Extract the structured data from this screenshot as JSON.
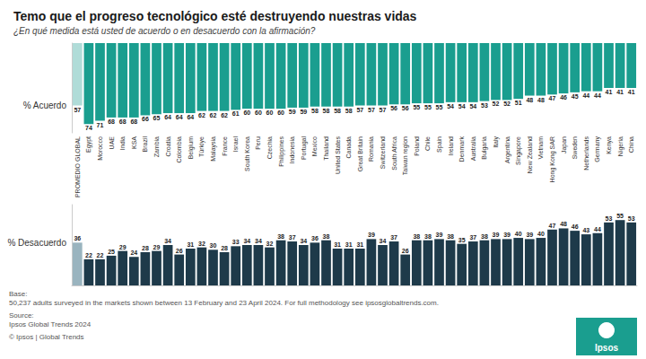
{
  "chart_data": [
    {
      "type": "bar",
      "title": "Temo que el progreso tecnológico esté destruyendo nuestras vidas",
      "subtitle": "¿En qué medida está usted de acuerdo o en desacuerdo con la afirmación?",
      "categories": [
        "PROMEDIO GLOBAL",
        "Egypt",
        "Morocco",
        "UAE",
        "India",
        "KSA",
        "Brazil",
        "Zambia",
        "Croatia",
        "Colombia",
        "Belgium",
        "Türkiye",
        "Malaysia",
        "France",
        "Israel",
        "South Korea",
        "Peru",
        "Czechia",
        "Philippines",
        "Indonesia",
        "Portugal",
        "Mexico",
        "Thailand",
        "United States",
        "Canada",
        "Great Britain",
        "Romania",
        "Switzerland",
        "South Africa",
        "Taiwan region",
        "Poland",
        "Chile",
        "Spain",
        "Ireland",
        "Denmark",
        "Australia",
        "Bulgaria",
        "Italy",
        "Argentina",
        "Singapore",
        "New Zealand",
        "Vietnam",
        "Hong Kong SAR",
        "Japan",
        "Sweden",
        "Netherlands",
        "Germany",
        "Kenya",
        "Nigeria",
        "China"
      ],
      "values": [
        57,
        74,
        71,
        68,
        68,
        68,
        66,
        65,
        64,
        64,
        64,
        62,
        62,
        62,
        61,
        60,
        60,
        60,
        60,
        59,
        59,
        58,
        58,
        58,
        58,
        57,
        57,
        57,
        56,
        56,
        55,
        55,
        55,
        54,
        54,
        54,
        53,
        52,
        52,
        51,
        48,
        48,
        47,
        46,
        45,
        44,
        44,
        41,
        41,
        41
      ],
      "colors": [
        "#b0dcd8",
        "#1a9e8f",
        "#1a9e8f",
        "#1a9e8f",
        "#1a9e8f",
        "#1a9e8f",
        "#1a9e8f",
        "#1a9e8f",
        "#1a9e8f",
        "#1a9e8f",
        "#1a9e8f",
        "#1a9e8f",
        "#1a9e8f",
        "#1a9e8f",
        "#1a9e8f",
        "#1a9e8f",
        "#1a9e8f",
        "#1a9e8f",
        "#1a9e8f",
        "#1a9e8f",
        "#1a9e8f",
        "#1a9e8f",
        "#1a9e8f",
        "#1a9e8f",
        "#1a9e8f",
        "#1a9e8f",
        "#1a9e8f",
        "#1a9e8f",
        "#1a9e8f",
        "#1a9e8f",
        "#1a9e8f",
        "#1a9e8f",
        "#1a9e8f",
        "#1a9e8f",
        "#1a9e8f",
        "#1a9e8f",
        "#1a9e8f",
        "#1a9e8f",
        "#1a9e8f",
        "#1a9e8f",
        "#1a9e8f",
        "#1a9e8f",
        "#1a9e8f",
        "#1a9e8f",
        "#1a9e8f",
        "#1a9e8f",
        "#1a9e8f",
        "#1a9e8f",
        "#1a9e8f",
        "#1a9e8f"
      ],
      "ylabel": "% Acuerdo",
      "ylim": [
        0,
        82
      ],
      "data_labels": true,
      "tick_labels": "x",
      "grid": false
    },
    {
      "type": "bar",
      "categories": [
        "PROMEDIO GLOBAL",
        "Egypt",
        "Morocco",
        "UAE",
        "India",
        "KSA",
        "Brazil",
        "Zambia",
        "Croatia",
        "Colombia",
        "Belgium",
        "Türkiye",
        "Malaysia",
        "France",
        "Israel",
        "South Korea",
        "Peru",
        "Czechia",
        "Philippines",
        "Indonesia",
        "Portugal",
        "Mexico",
        "Thailand",
        "United States",
        "Canada",
        "Great Britain",
        "Romania",
        "Switzerland",
        "South Africa",
        "Taiwan region",
        "Poland",
        "Chile",
        "Spain",
        "Ireland",
        "Denmark",
        "Australia",
        "Bulgaria",
        "Italy",
        "Argentina",
        "Singapore",
        "New Zealand",
        "Vietnam",
        "Hong Kong SAR",
        "Japan",
        "Sweden",
        "Netherlands",
        "Germany",
        "Kenya",
        "Nigeria",
        "China"
      ],
      "values": [
        36,
        22,
        22,
        25,
        29,
        24,
        28,
        29,
        34,
        26,
        31,
        32,
        30,
        28,
        33,
        34,
        34,
        32,
        38,
        37,
        34,
        36,
        38,
        31,
        31,
        31,
        39,
        34,
        37,
        26,
        38,
        38,
        39,
        38,
        35,
        37,
        38,
        39,
        39,
        40,
        39,
        40,
        47,
        48,
        46,
        43,
        44,
        53,
        55,
        53
      ],
      "colors": [
        "#9ab4bf",
        "#1e3a4a",
        "#1e3a4a",
        "#1e3a4a",
        "#1e3a4a",
        "#1e3a4a",
        "#1e3a4a",
        "#1e3a4a",
        "#1e3a4a",
        "#1e3a4a",
        "#1e3a4a",
        "#1e3a4a",
        "#1e3a4a",
        "#1e3a4a",
        "#1e3a4a",
        "#1e3a4a",
        "#1e3a4a",
        "#1e3a4a",
        "#1e3a4a",
        "#1e3a4a",
        "#1e3a4a",
        "#1e3a4a",
        "#1e3a4a",
        "#1e3a4a",
        "#1e3a4a",
        "#1e3a4a",
        "#1e3a4a",
        "#1e3a4a",
        "#1e3a4a",
        "#1e3a4a",
        "#1e3a4a",
        "#1e3a4a",
        "#1e3a4a",
        "#1e3a4a",
        "#1e3a4a",
        "#1e3a4a",
        "#1e3a4a",
        "#1e3a4a",
        "#1e3a4a",
        "#1e3a4a",
        "#1e3a4a",
        "#1e3a4a",
        "#1e3a4a",
        "#1e3a4a",
        "#1e3a4a",
        "#1e3a4a",
        "#1e3a4a",
        "#1e3a4a",
        "#1e3a4a",
        "#1e3a4a"
      ],
      "ylabel": "% Desacuerdo",
      "ylim": [
        0,
        68
      ],
      "data_labels": true,
      "tick_labels": false,
      "grid": false,
      "annotations": [
        "Base:\n50,237 adults surveyed in the markets shown between 13 February and 23 April 2024. For full methodology see ipsosglobaltrends.com.",
        "Source:\nIpsos Global Trends 2024",
        "© Ipsos | Global Trends",
        "Ipsos"
      ]
    }
  ]
}
